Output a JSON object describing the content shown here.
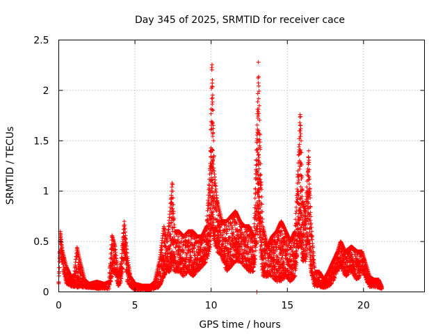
{
  "chart_data": {
    "type": "scatter",
    "title": "Day 345 of 2025, SRMTID for receiver cace",
    "xlabel": "GPS time / hours",
    "ylabel": "SRMTID / TECUs",
    "xlim": [
      0,
      24
    ],
    "ylim": [
      0,
      2.5
    ],
    "x_ticks": [
      0,
      5,
      10,
      15,
      20
    ],
    "y_ticks": [
      0,
      0.5,
      1,
      1.5,
      2,
      2.5
    ],
    "x_tick_labels": [
      "0",
      "5",
      "10",
      "15",
      "20"
    ],
    "y_tick_labels": [
      "0",
      "0.5",
      "1",
      "1.5",
      "2",
      "2.5"
    ],
    "grid": true,
    "marker": "+",
    "series": [
      {
        "name": "cace",
        "color": "#ff0000",
        "envelope": [
          [
            0.0,
            0.08,
            0.1
          ],
          [
            0.1,
            0.45,
            0.6
          ],
          [
            0.25,
            0.25,
            0.4
          ],
          [
            0.5,
            0.08,
            0.25
          ],
          [
            0.8,
            0.05,
            0.15
          ],
          [
            1.0,
            0.05,
            0.15
          ],
          [
            1.2,
            0.04,
            0.44
          ],
          [
            1.4,
            0.05,
            0.3
          ],
          [
            1.7,
            0.04,
            0.12
          ],
          [
            2.0,
            0.04,
            0.08
          ],
          [
            2.5,
            0.03,
            0.1
          ],
          [
            3.0,
            0.03,
            0.08
          ],
          [
            3.3,
            0.03,
            0.1
          ],
          [
            3.5,
            0.15,
            0.56
          ],
          [
            3.7,
            0.2,
            0.45
          ],
          [
            3.9,
            0.05,
            0.15
          ],
          [
            4.1,
            0.1,
            0.3
          ],
          [
            4.3,
            0.4,
            0.7
          ],
          [
            4.5,
            0.1,
            0.35
          ],
          [
            4.7,
            0.05,
            0.15
          ],
          [
            5.0,
            0.02,
            0.08
          ],
          [
            5.5,
            0.02,
            0.06
          ],
          [
            6.0,
            0.02,
            0.06
          ],
          [
            6.3,
            0.03,
            0.1
          ],
          [
            6.6,
            0.05,
            0.3
          ],
          [
            6.9,
            0.15,
            0.65
          ],
          [
            7.1,
            0.2,
            0.5
          ],
          [
            7.3,
            0.2,
            0.8
          ],
          [
            7.45,
            0.3,
            1.1
          ],
          [
            7.6,
            0.2,
            0.6
          ],
          [
            7.9,
            0.2,
            0.6
          ],
          [
            8.2,
            0.15,
            0.55
          ],
          [
            8.5,
            0.2,
            0.6
          ],
          [
            8.8,
            0.15,
            0.6
          ],
          [
            9.1,
            0.2,
            0.55
          ],
          [
            9.4,
            0.25,
            0.55
          ],
          [
            9.7,
            0.3,
            0.65
          ],
          [
            9.95,
            0.45,
            1.3
          ],
          [
            10.05,
            0.7,
            2.33
          ],
          [
            10.2,
            0.5,
            1.2
          ],
          [
            10.4,
            0.4,
            0.9
          ],
          [
            10.7,
            0.35,
            0.7
          ],
          [
            11.0,
            0.2,
            0.7
          ],
          [
            11.3,
            0.25,
            0.75
          ],
          [
            11.6,
            0.3,
            0.8
          ],
          [
            11.9,
            0.3,
            0.7
          ],
          [
            12.2,
            0.25,
            0.65
          ],
          [
            12.5,
            0.2,
            0.65
          ],
          [
            12.8,
            0.2,
            0.55
          ],
          [
            13.0,
            0.5,
            1.5
          ],
          [
            13.1,
            0.8,
            2.28
          ],
          [
            13.25,
            0.4,
            1.2
          ],
          [
            13.4,
            0.15,
            0.65
          ],
          [
            13.7,
            0.15,
            0.45
          ],
          [
            14.0,
            0.15,
            0.55
          ],
          [
            14.3,
            0.1,
            0.6
          ],
          [
            14.6,
            0.1,
            0.7
          ],
          [
            14.9,
            0.15,
            0.6
          ],
          [
            15.2,
            0.1,
            0.5
          ],
          [
            15.5,
            0.15,
            0.6
          ],
          [
            15.7,
            0.4,
            1.2
          ],
          [
            15.85,
            0.5,
            1.8
          ],
          [
            16.0,
            0.3,
            0.9
          ],
          [
            16.2,
            0.3,
            0.8
          ],
          [
            16.4,
            0.5,
            1.4
          ],
          [
            16.55,
            0.2,
            0.7
          ],
          [
            16.8,
            0.05,
            0.2
          ],
          [
            17.1,
            0.05,
            0.2
          ],
          [
            17.4,
            0.04,
            0.12
          ],
          [
            17.7,
            0.05,
            0.2
          ],
          [
            18.0,
            0.1,
            0.3
          ],
          [
            18.3,
            0.2,
            0.4
          ],
          [
            18.5,
            0.25,
            0.5
          ],
          [
            18.8,
            0.15,
            0.4
          ],
          [
            19.2,
            0.2,
            0.45
          ],
          [
            19.6,
            0.1,
            0.4
          ],
          [
            19.9,
            0.2,
            0.4
          ],
          [
            20.1,
            0.15,
            0.3
          ],
          [
            20.4,
            0.05,
            0.15
          ],
          [
            20.7,
            0.05,
            0.12
          ],
          [
            21.0,
            0.04,
            0.12
          ],
          [
            21.2,
            0.03,
            0.05
          ]
        ],
        "isolated_points": [
          [
            13.0,
            0.0
          ],
          [
            1.2,
            0.44
          ]
        ]
      }
    ]
  }
}
